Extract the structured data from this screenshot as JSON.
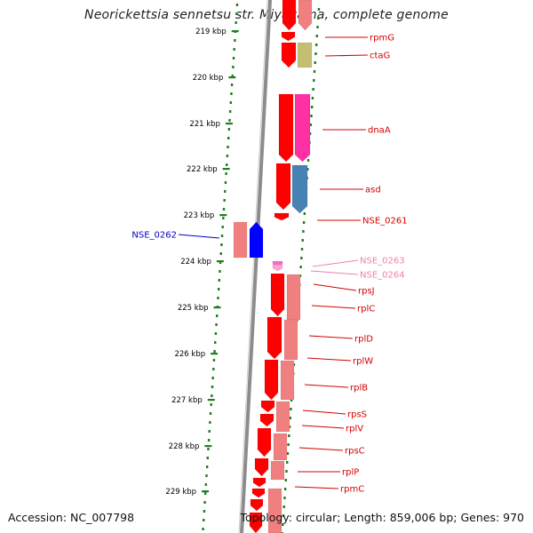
{
  "title": "Neorickettsia sennetsu str. Miyayama, complete genome",
  "footer": {
    "accession": "Accession: NC_007798",
    "summary": "Topology: circular; Length: 859,006 bp; Genes: 970"
  },
  "colors": {
    "backbone": "#8c8c8c",
    "ticks": "#1f7f1f",
    "gene_red": "#ff0000",
    "gene_light_red": "#f08080",
    "gene_pink": "#ff2fa4",
    "gene_olive": "#c2bf72",
    "gene_steel": "#4682b4",
    "gene_blue": "#0000ff",
    "label_red": "#d40000",
    "label_pink": "#ee80b0",
    "label_blue": "#0000cc"
  },
  "scale_labels": [
    "219 kbp",
    "220 kbp",
    "221 kbp",
    "222 kbp",
    "223 kbp",
    "224 kbp",
    "225 kbp",
    "226 kbp",
    "227 kbp",
    "228 kbp",
    "229 kbp"
  ],
  "gene_labels": [
    {
      "text": "rpmG",
      "color": "label_red"
    },
    {
      "text": "ctaG",
      "color": "label_red"
    },
    {
      "text": "dnaA",
      "color": "label_red"
    },
    {
      "text": "asd",
      "color": "label_red"
    },
    {
      "text": "NSE_0261",
      "color": "label_red"
    },
    {
      "text": "NSE_0263",
      "color": "label_pink"
    },
    {
      "text": "NSE_0264",
      "color": "label_pink"
    },
    {
      "text": "rpsJ",
      "color": "label_red"
    },
    {
      "text": "rplC",
      "color": "label_red"
    },
    {
      "text": "rplD",
      "color": "label_red"
    },
    {
      "text": "rplW",
      "color": "label_red"
    },
    {
      "text": "rplB",
      "color": "label_red"
    },
    {
      "text": "rpsS",
      "color": "label_red"
    },
    {
      "text": "rplV",
      "color": "label_red"
    },
    {
      "text": "rpsC",
      "color": "label_red"
    },
    {
      "text": "rplP",
      "color": "label_red"
    },
    {
      "text": "rpmC",
      "color": "label_red"
    },
    {
      "text": "NSE_0262",
      "color": "label_blue"
    }
  ]
}
